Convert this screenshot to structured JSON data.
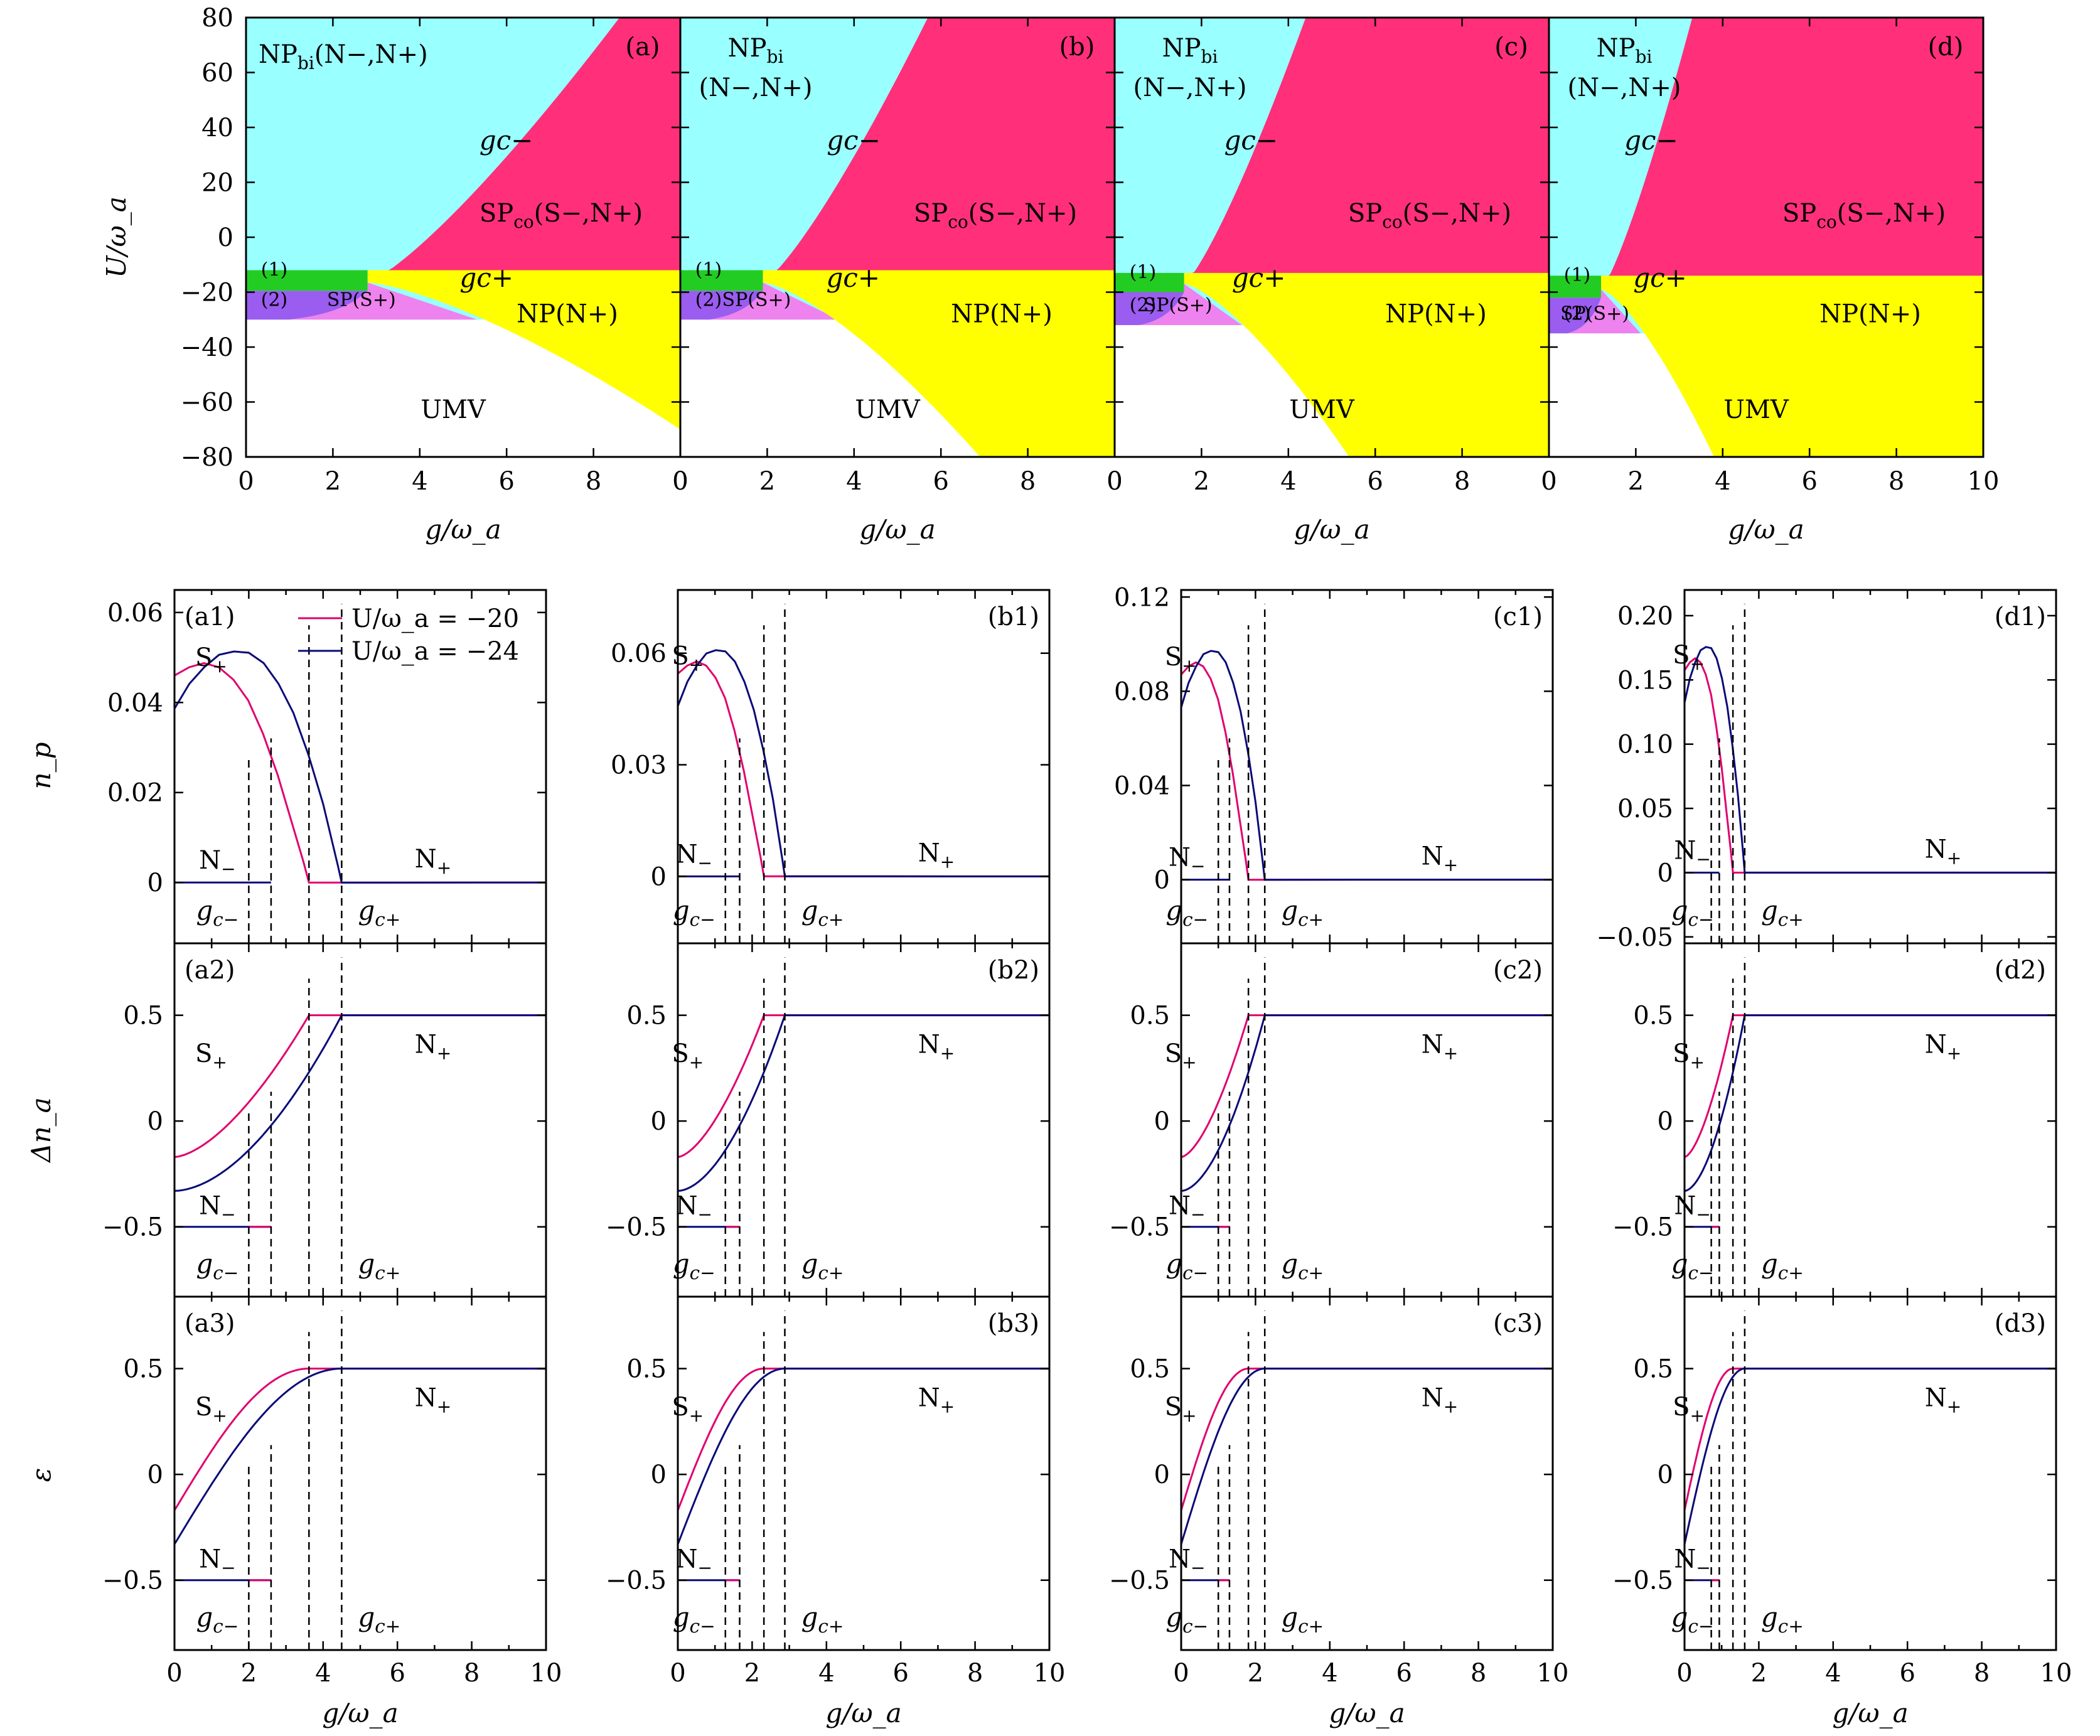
{
  "chart_data": [
    {
      "type": "area",
      "id": "phase",
      "panels": [
        "(a)",
        "(b)",
        "(c)",
        "(d)"
      ],
      "xlabel": "g/ω_a",
      "ylabel": "U/ω_a",
      "xlim": [
        0,
        10
      ],
      "ylim": [
        -80,
        80
      ],
      "xticks": [
        "0",
        "2",
        "4",
        "6",
        "8",
        "0"
      ],
      "xticks_last": [
        "0",
        "2",
        "4",
        "6",
        "8",
        "10"
      ],
      "yticks": [
        "80",
        "60",
        "40",
        "20",
        "0",
        "−20",
        "−40",
        "−60",
        "−80"
      ],
      "region_labels": {
        "np_bi": "NP",
        "np_bi_sub": "bi",
        "np_bi_states": "(N−,N+)",
        "sp_co": "SP",
        "sp_co_sub": "co",
        "sp_co_states": "(S−,N+)",
        "np": "NP(N+)",
        "sp": "SP(S+)",
        "umv": "UMV",
        "gcm": "gc−",
        "gcp": "gc+",
        "r1": "(1)",
        "r2": "(2)"
      },
      "colors": {
        "np_bi": "#99ffff",
        "sp_co": "#ff2f7a",
        "np": "#ffff00",
        "sp": "#ee82ee",
        "r1": "#22cc22",
        "r2": "#9b5cf0",
        "umv": "#ffffff"
      },
      "boundaries": [
        {
          "panel": "(a)",
          "gc_minus_start": [
            2.8,
            -16.5
          ],
          "gc_minus_end": [
            8.6,
            80
          ],
          "U_top_yellow": -12,
          "U_sp_bottom": -30,
          "gc_plus_end": [
            10,
            -70
          ]
        },
        {
          "panel": "(b)",
          "gc_minus_start": [
            1.9,
            -16.5
          ],
          "gc_minus_end": [
            5.7,
            80
          ],
          "U_top_yellow": -12,
          "U_sp_bottom": -30,
          "gc_plus_end": [
            6.9,
            -80
          ]
        },
        {
          "panel": "(c)",
          "gc_minus_start": [
            1.6,
            -17
          ],
          "gc_minus_end": [
            4.4,
            80
          ],
          "U_top_yellow": -13,
          "U_sp_bottom": -32,
          "gc_plus_end": [
            5.4,
            -80
          ]
        },
        {
          "panel": "(d)",
          "gc_minus_start": [
            1.2,
            -19
          ],
          "gc_minus_end": [
            3.3,
            80
          ],
          "U_top_yellow": -14,
          "U_sp_bottom": -35,
          "gc_plus_end": [
            3.8,
            -80
          ]
        }
      ]
    },
    {
      "type": "line",
      "id": "np",
      "ylabel": "n_p",
      "panels": [
        "(a1)",
        "(b1)",
        "(c1)",
        "(d1)"
      ],
      "legend": [
        "U/ω_a = −20",
        "U/ω_a = −24"
      ],
      "yticks": [
        [
          "0.06",
          "0.04",
          "0.02",
          "0"
        ],
        [
          "0.06",
          "0.03",
          "0"
        ],
        [
          "0.12",
          "0.08",
          "0.04",
          "0"
        ],
        [
          "0.20",
          "0.15",
          "0.10",
          "0.05",
          "0",
          "−0.05"
        ]
      ],
      "series": [
        {
          "name": "U/ω_a = −20",
          "color": "#e0006e",
          "x": [
            0,
            0.4,
            0.8,
            1.2,
            1.6,
            2.0,
            2.4,
            2.8,
            3.2,
            3.5,
            3.65
          ],
          "y": [
            0.05,
            0.052,
            0.053,
            0.052,
            0.049,
            0.044,
            0.036,
            0.026,
            0.014,
            0.005,
            0
          ]
        },
        {
          "name": "U/ω_a = −24",
          "color": "#0a0a78",
          "x": [
            0,
            0.4,
            0.8,
            1.2,
            1.6,
            2.0,
            2.4,
            2.8,
            3.2,
            3.6,
            4.0,
            4.4,
            4.5
          ],
          "y": [
            0.042,
            0.048,
            0.052,
            0.055,
            0.0558,
            0.0555,
            0.053,
            0.048,
            0.041,
            0.031,
            0.019,
            0.004,
            0
          ]
        }
      ]
    },
    {
      "type": "line",
      "id": "dna",
      "ylabel": "Δn_a",
      "panels": [
        "(a2)",
        "(b2)",
        "(c2)",
        "(d2)"
      ],
      "yticks": [
        "0.5",
        "0",
        "−0.5"
      ]
    },
    {
      "type": "line",
      "id": "eps",
      "ylabel": "ε",
      "xlabel": "g/ω_a",
      "panels": [
        "(a3)",
        "(b3)",
        "(c3)",
        "(d3)"
      ],
      "yticks": [
        "0.5",
        "0",
        "−0.5"
      ],
      "xticks": [
        "0",
        "2",
        "4",
        "6",
        "8",
        "10"
      ]
    }
  ],
  "labels": {
    "Sp": "S+",
    "Nm": "N−",
    "Np": "N+",
    "gcm": "gc−",
    "gcp": "gc+"
  }
}
